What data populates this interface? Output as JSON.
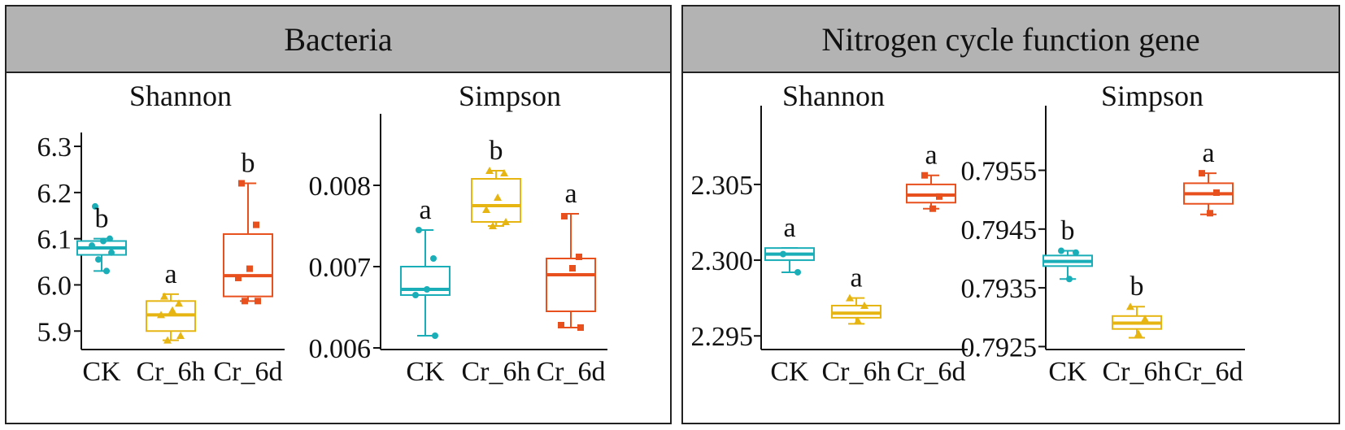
{
  "panels": [
    {
      "title": "Bacteria"
    },
    {
      "title": "Nitrogen cycle function gene"
    }
  ],
  "colors": {
    "CK": "#1aaeb8",
    "Cr_6h": "#e6b512",
    "Cr_6d": "#e8501e"
  },
  "chart_data": [
    {
      "type": "box",
      "panel": "Bacteria",
      "title": "Shannon",
      "categories": [
        "CK",
        "Cr_6h",
        "Cr_6d"
      ],
      "yticks": [
        "6.3",
        "6.2",
        "6.1",
        "6.0",
        "5.9"
      ],
      "yticks_values": [
        6.3,
        6.2,
        6.1,
        6.0,
        5.9
      ],
      "ylim": [
        5.86,
        6.33
      ],
      "boxes": [
        {
          "name": "CK",
          "min": 6.03,
          "q1": 6.065,
          "median": 6.08,
          "q3": 6.095,
          "max": 6.1,
          "letter": "b",
          "points": [
            6.17,
            6.1,
            6.095,
            6.085,
            6.07,
            6.055,
            6.03
          ]
        },
        {
          "name": "Cr_6h",
          "min": 5.88,
          "q1": 5.9,
          "median": 5.935,
          "q3": 5.965,
          "max": 5.98,
          "letter": "a",
          "points": [
            5.975,
            5.96,
            5.945,
            5.935,
            5.89,
            5.88
          ]
        },
        {
          "name": "Cr_6d",
          "min": 5.965,
          "q1": 5.975,
          "median": 6.02,
          "q3": 6.11,
          "max": 6.22,
          "letter": "b",
          "points": [
            6.22,
            6.13,
            6.035,
            6.015,
            5.965,
            5.965
          ]
        }
      ]
    },
    {
      "type": "box",
      "panel": "Bacteria",
      "title": "Simpson",
      "categories": [
        "CK",
        "Cr_6h",
        "Cr_6d"
      ],
      "yticks": [
        "0.008",
        "0.007",
        "0.006"
      ],
      "yticks_values": [
        0.008,
        0.007,
        0.006
      ],
      "ylim": [
        0.00598,
        0.00888
      ],
      "boxes": [
        {
          "name": "CK",
          "min": 0.00615,
          "q1": 0.00665,
          "median": 0.00672,
          "q3": 0.007,
          "max": 0.00745,
          "letter": "a",
          "points": [
            0.00745,
            0.0071,
            0.00672,
            0.00665,
            0.00615
          ]
        },
        {
          "name": "Cr_6h",
          "min": 0.0075,
          "q1": 0.00755,
          "median": 0.00775,
          "q3": 0.00808,
          "max": 0.00818,
          "letter": "b",
          "points": [
            0.00818,
            0.00815,
            0.00785,
            0.0077,
            0.00755,
            0.0075
          ]
        },
        {
          "name": "Cr_6d",
          "min": 0.00625,
          "q1": 0.00645,
          "median": 0.0069,
          "q3": 0.0071,
          "max": 0.00765,
          "letter": "a",
          "points": [
            0.00762,
            0.00712,
            0.00698,
            0.00628,
            0.00625
          ]
        }
      ]
    },
    {
      "type": "box",
      "panel": "Nitrogen cycle function gene",
      "title": "Shannon",
      "categories": [
        "CK",
        "Cr_6h",
        "Cr_6d"
      ],
      "yticks": [
        "2.305",
        "2.300",
        "2.295"
      ],
      "yticks_values": [
        2.305,
        2.3,
        2.295
      ],
      "ylim": [
        2.2941,
        2.3102
      ],
      "boxes": [
        {
          "name": "CK",
          "min": 2.2992,
          "q1": 2.3,
          "median": 2.3004,
          "q3": 2.3008,
          "max": 2.3008,
          "letter": "a",
          "points": [
            2.3004,
            2.2992
          ]
        },
        {
          "name": "Cr_6h",
          "min": 2.2958,
          "q1": 2.2962,
          "median": 2.2965,
          "q3": 2.297,
          "max": 2.2975,
          "letter": "a",
          "points": [
            2.2975,
            2.297,
            2.296
          ]
        },
        {
          "name": "Cr_6d",
          "min": 2.3034,
          "q1": 2.3038,
          "median": 2.3043,
          "q3": 2.305,
          "max": 2.3056,
          "letter": "a",
          "points": [
            2.3056,
            2.3042,
            2.3034
          ]
        }
      ]
    },
    {
      "type": "box",
      "panel": "Nitrogen cycle function gene",
      "title": "Simpson",
      "categories": [
        "CK",
        "Cr_6h",
        "Cr_6d"
      ],
      "yticks": [
        "0.7955",
        "0.7945",
        "0.7935",
        "0.7925"
      ],
      "yticks_values": [
        0.7955,
        0.7945,
        0.7935,
        0.7925
      ],
      "ylim": [
        0.79245,
        0.7966
      ],
      "boxes": [
        {
          "name": "CK",
          "min": 0.79365,
          "q1": 0.79387,
          "median": 0.79395,
          "q3": 0.79405,
          "max": 0.79413,
          "letter": "b",
          "points": [
            0.79413,
            0.7941,
            0.79365
          ]
        },
        {
          "name": "Cr_6h",
          "min": 0.79265,
          "q1": 0.7928,
          "median": 0.7929,
          "q3": 0.79302,
          "max": 0.79318,
          "letter": "b",
          "points": [
            0.79318,
            0.79297,
            0.79272
          ]
        },
        {
          "name": "Cr_6d",
          "min": 0.79475,
          "q1": 0.79493,
          "median": 0.7951,
          "q3": 0.79528,
          "max": 0.79545,
          "letter": "a",
          "points": [
            0.79545,
            0.79512,
            0.79477
          ]
        }
      ]
    }
  ]
}
